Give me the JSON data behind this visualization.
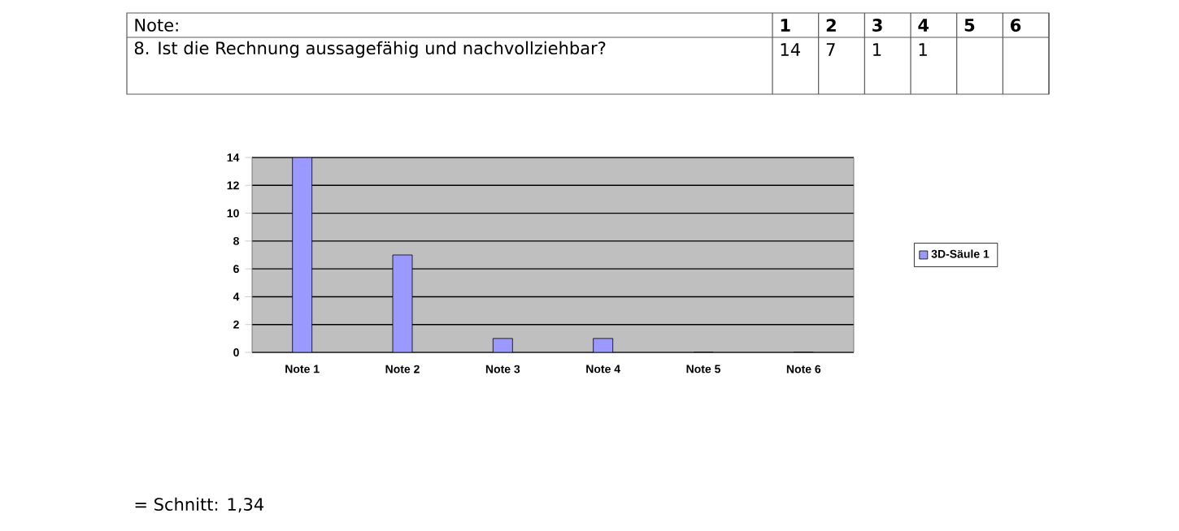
{
  "chart_data": {
    "type": "bar",
    "title": "Note:",
    "subtitle": "8. Ist die Rechnung aussagefähig und nachvollziehbar?",
    "categories": [
      "Note 1",
      "Note 2",
      "Note 3",
      "Note 4",
      "Note 5",
      "Note 6"
    ],
    "series": [
      {
        "name": "3D-Säule 1",
        "color": "#9999ff",
        "values": [
          14,
          7,
          1,
          1,
          0,
          0
        ]
      }
    ],
    "ylim": [
      0,
      14
    ],
    "yticks": [
      0,
      2,
      4,
      6,
      8,
      10,
      12,
      14
    ],
    "grid": "y",
    "legend": "right",
    "annotations": [
      "1",
      "2",
      "3",
      "4",
      "5",
      "6",
      "14",
      "7",
      "1",
      "1",
      "= Schnitt: 1,34"
    ]
  }
}
